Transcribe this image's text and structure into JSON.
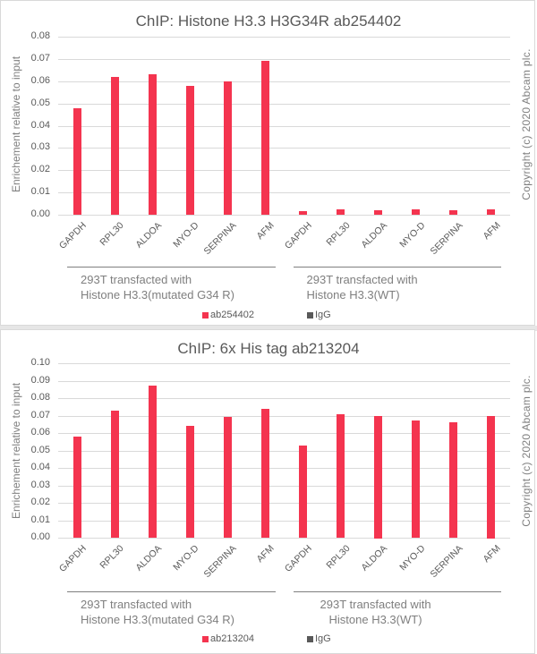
{
  "colors": {
    "series": "#f4344f",
    "igg": "#595959",
    "grid": "#d9d9d9",
    "text": "#595959"
  },
  "copyright": "Copyright (c) 2020 Abcam plc.",
  "chart_data": [
    {
      "type": "bar",
      "title": "ChIP: Histone H3.3 H3G34R ab254402",
      "ylabel": "Enrichement relative to input",
      "xlabel": "",
      "ylim": [
        0,
        0.08
      ],
      "yticks": [
        "0.00",
        "0.01",
        "0.02",
        "0.03",
        "0.04",
        "0.05",
        "0.06",
        "0.07",
        "0.08"
      ],
      "grid": true,
      "legend_position": "bottom",
      "groups": [
        {
          "label_line1": "293T transfacted with",
          "label_line2": "Histone H3.3(mutated G34 R)",
          "categories": [
            "GAPDH",
            "RPL30",
            "ALDOA",
            "MYO-D",
            "SERPINA",
            "AFM"
          ]
        },
        {
          "label_line1": "293T transfacted with",
          "label_line2": "Histone H3.3(WT)",
          "categories": [
            "GAPDH",
            "RPL30",
            "ALDOA",
            "MYO-D",
            "SERPINA",
            "AFM"
          ]
        }
      ],
      "categories": [
        "GAPDH",
        "RPL30",
        "ALDOA",
        "MYO-D",
        "SERPINA",
        "AFM",
        "GAPDH",
        "RPL30",
        "ALDOA",
        "MYO-D",
        "SERPINA",
        "AFM"
      ],
      "series": [
        {
          "name": "ab254402",
          "values": [
            0.048,
            0.062,
            0.063,
            0.058,
            0.06,
            0.069,
            0.0015,
            0.0025,
            0.002,
            0.0025,
            0.002,
            0.0025
          ]
        },
        {
          "name": "IgG",
          "values": [
            0,
            0,
            0,
            0,
            0,
            0,
            0,
            0,
            0,
            0,
            0,
            0
          ]
        }
      ]
    },
    {
      "type": "bar",
      "title": "ChIP: 6x His tag ab213204",
      "ylabel": "Enrichement relative to input",
      "xlabel": "",
      "ylim": [
        0,
        0.1
      ],
      "yticks": [
        "0.00",
        "0.01",
        "0.02",
        "0.03",
        "0.04",
        "0.05",
        "0.06",
        "0.07",
        "0.08",
        "0.09",
        "0.10"
      ],
      "grid": true,
      "legend_position": "bottom",
      "groups": [
        {
          "label_line1": "293T transfacted with",
          "label_line2": "Histone H3.3(mutated G34 R)",
          "categories": [
            "GAPDH",
            "RPL30",
            "ALDOA",
            "MYO-D",
            "SERPINA",
            "AFM"
          ]
        },
        {
          "label_line1": "293T transfacted with",
          "label_line2": "Histone H3.3(WT)",
          "categories": [
            "GAPDH",
            "RPL30",
            "ALDOA",
            "MYO-D",
            "SERPINA",
            "AFM"
          ]
        }
      ],
      "categories": [
        "GAPDH",
        "RPL30",
        "ALDOA",
        "MYO-D",
        "SERPINA",
        "AFM",
        "GAPDH",
        "RPL30",
        "ALDOA",
        "MYO-D",
        "SERPINA",
        "AFM"
      ],
      "series": [
        {
          "name": "ab213204",
          "values": [
            0.058,
            0.073,
            0.087,
            0.064,
            0.069,
            0.074,
            0.053,
            0.071,
            0.07,
            0.067,
            0.066,
            0.07
          ]
        },
        {
          "name": "IgG",
          "values": [
            0,
            0,
            0,
            0,
            0,
            0,
            0,
            0,
            0,
            0,
            0,
            0
          ]
        }
      ]
    }
  ]
}
